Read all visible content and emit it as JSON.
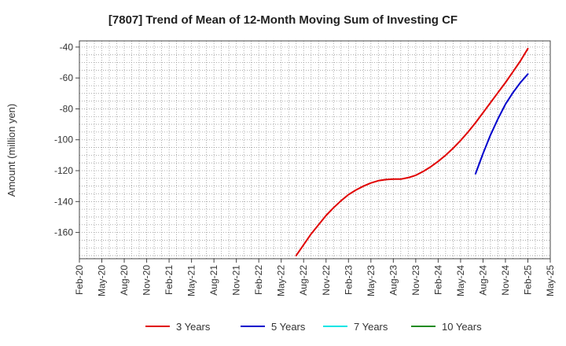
{
  "chart_data": {
    "type": "line",
    "title": "[7807]  Trend of Mean of 12-Month Moving Sum of Investing CF",
    "xlabel": "",
    "ylabel": "Amount (million yen)",
    "x_ticks": [
      "Feb-20",
      "May-20",
      "Aug-20",
      "Nov-20",
      "Feb-21",
      "May-21",
      "Aug-21",
      "Nov-21",
      "Feb-22",
      "May-22",
      "Aug-22",
      "Nov-22",
      "Feb-23",
      "May-23",
      "Aug-23",
      "Nov-23",
      "Feb-24",
      "May-24",
      "Aug-24",
      "Nov-24",
      "Feb-25",
      "May-25"
    ],
    "y_ticks": [
      -40,
      -60,
      -80,
      -100,
      -120,
      -140,
      -160
    ],
    "ylim": [
      -177,
      -36
    ],
    "grid": true,
    "legend_position": "bottom",
    "series": [
      {
        "name": "3 Years",
        "color": "#e00000",
        "points": [
          [
            "Jul-22",
            -175
          ],
          [
            "Aug-22",
            -168
          ],
          [
            "Sep-22",
            -161
          ],
          [
            "Oct-22",
            -155
          ],
          [
            "Nov-22",
            -149
          ],
          [
            "Dec-22",
            -144
          ],
          [
            "Jan-23",
            -139.5
          ],
          [
            "Feb-23",
            -135.5
          ],
          [
            "Mar-23",
            -132.5
          ],
          [
            "Apr-23",
            -130
          ],
          [
            "May-23",
            -128
          ],
          [
            "Jun-23",
            -126.5
          ],
          [
            "Jul-23",
            -125.8
          ],
          [
            "Aug-23",
            -125.5
          ],
          [
            "Sep-23",
            -125.5
          ],
          [
            "Oct-23",
            -124.5
          ],
          [
            "Nov-23",
            -123
          ],
          [
            "Dec-23",
            -120.5
          ],
          [
            "Jan-24",
            -117.5
          ],
          [
            "Feb-24",
            -114
          ],
          [
            "Mar-24",
            -110
          ],
          [
            "Apr-24",
            -105.5
          ],
          [
            "May-24",
            -100.5
          ],
          [
            "Jun-24",
            -95
          ],
          [
            "Jul-24",
            -89
          ],
          [
            "Aug-24",
            -82.5
          ],
          [
            "Sep-24",
            -76
          ],
          [
            "Oct-24",
            -69.5
          ],
          [
            "Nov-24",
            -63
          ],
          [
            "Dec-24",
            -56
          ],
          [
            "Jan-25",
            -49
          ],
          [
            "Feb-25",
            -41
          ]
        ]
      },
      {
        "name": "5 Years",
        "color": "#0000cc",
        "points": [
          [
            "Jul-24",
            -122
          ],
          [
            "Aug-24",
            -109
          ],
          [
            "Sep-24",
            -97
          ],
          [
            "Oct-24",
            -86.5
          ],
          [
            "Nov-24",
            -77
          ],
          [
            "Dec-24",
            -69.5
          ],
          [
            "Jan-25",
            -63
          ],
          [
            "Feb-25",
            -57.5
          ]
        ]
      },
      {
        "name": "7 Years",
        "color": "#00e5e5",
        "points": []
      },
      {
        "name": "10 Years",
        "color": "#228b22",
        "points": []
      }
    ]
  }
}
